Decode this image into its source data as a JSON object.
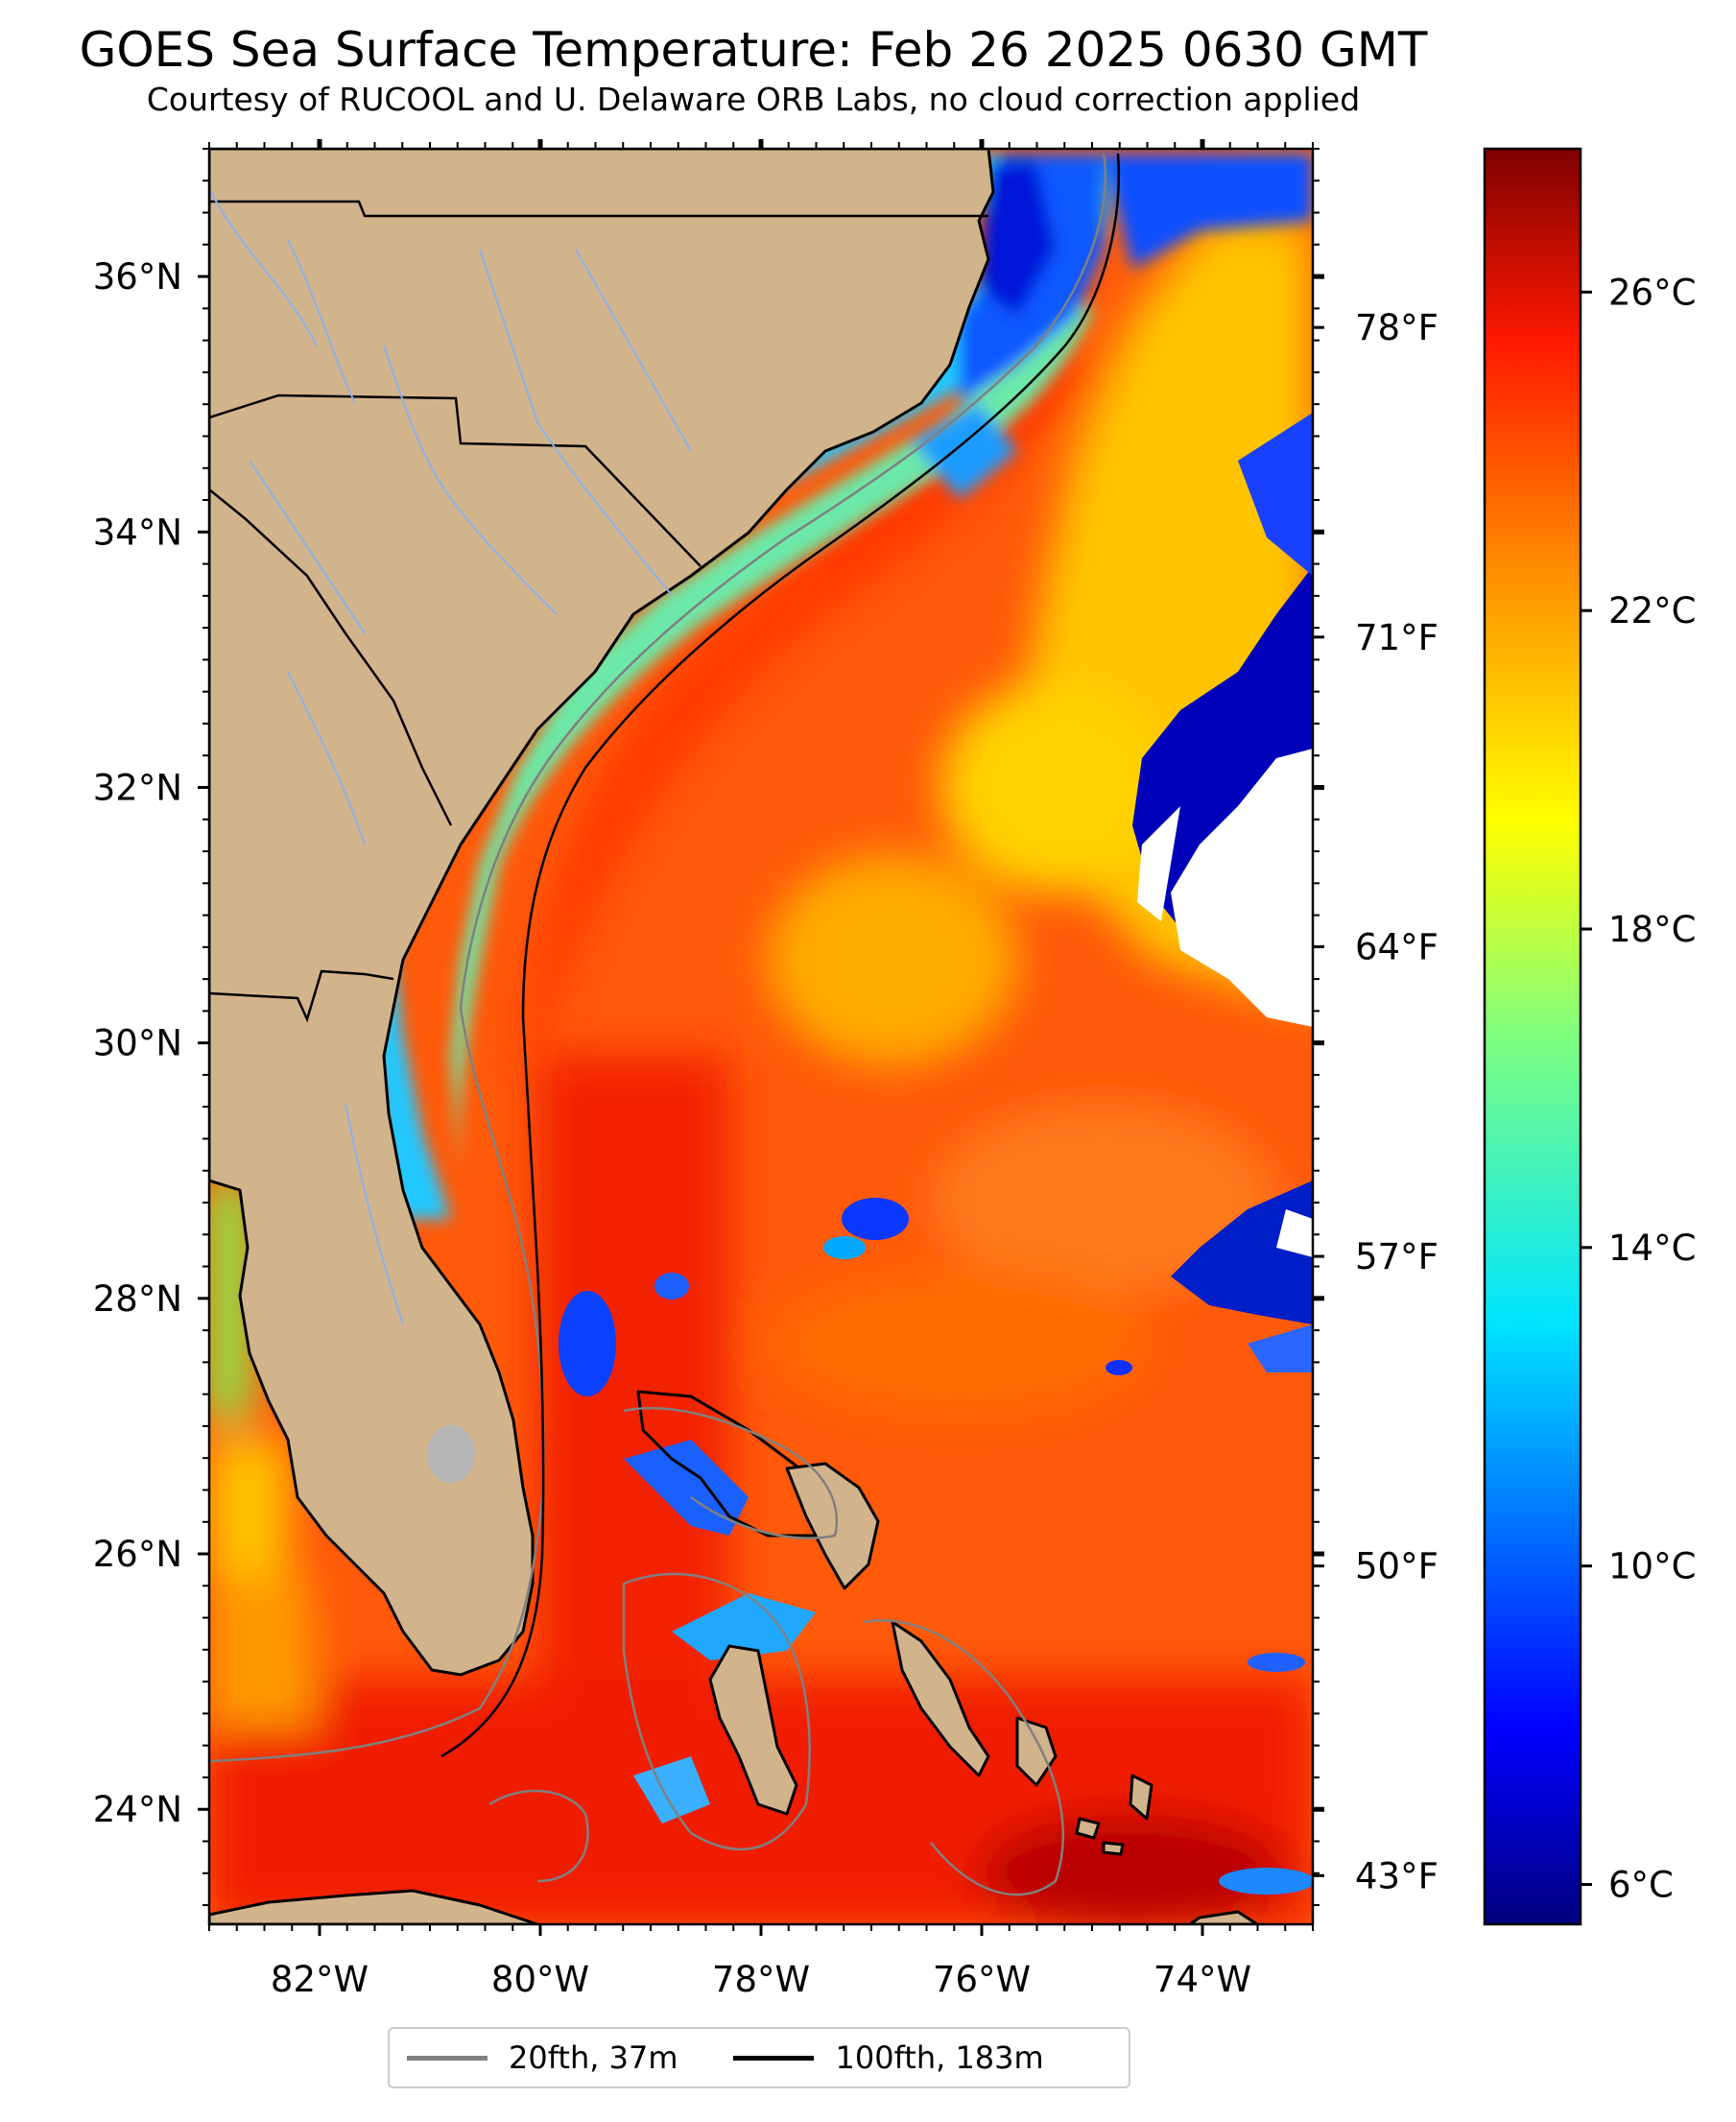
{
  "title": "GOES Sea Surface Temperature: Feb 26 2025 0630 GMT",
  "subtitle": "Courtesy of RUCOOL and U. Delaware ORB Labs, no cloud correction applied",
  "map": {
    "lon_range": [
      -83,
      -73
    ],
    "lat_range": [
      23.1,
      37.0
    ],
    "lon_ticks": [
      {
        "value": -82,
        "label": "82°W"
      },
      {
        "value": -80,
        "label": "80°W"
      },
      {
        "value": -78,
        "label": "78°W"
      },
      {
        "value": -76,
        "label": "76°W"
      },
      {
        "value": -74,
        "label": "74°W"
      }
    ],
    "lat_ticks": [
      {
        "value": 36,
        "label": "36°N"
      },
      {
        "value": 34,
        "label": "34°N"
      },
      {
        "value": 32,
        "label": "32°N"
      },
      {
        "value": 30,
        "label": "30°N"
      },
      {
        "value": 28,
        "label": "28°N"
      },
      {
        "value": 26,
        "label": "26°N"
      },
      {
        "value": 24,
        "label": "24°N"
      }
    ],
    "fahrenheit_ticks": [
      {
        "value": 78,
        "label": "78°F"
      },
      {
        "value": 71,
        "label": "71°F"
      },
      {
        "value": 64,
        "label": "64°F"
      },
      {
        "value": 57,
        "label": "57°F"
      },
      {
        "value": 50,
        "label": "50°F"
      },
      {
        "value": 43,
        "label": "43°F"
      }
    ],
    "land_color": "#d2b48c",
    "no_data_color": "#ffffff"
  },
  "colorbar": {
    "colormap": "jet",
    "range_c": [
      5.5,
      27.8
    ],
    "ticks": [
      {
        "value": 26,
        "label": "26°C"
      },
      {
        "value": 22,
        "label": "22°C"
      },
      {
        "value": 18,
        "label": "18°C"
      },
      {
        "value": 14,
        "label": "14°C"
      },
      {
        "value": 10,
        "label": "10°C"
      },
      {
        "value": 6,
        "label": "6°C"
      }
    ]
  },
  "legend": {
    "items": [
      {
        "label": "20fth, 37m",
        "color": "#808080"
      },
      {
        "label": "100fth, 183m",
        "color": "#000000"
      }
    ]
  }
}
